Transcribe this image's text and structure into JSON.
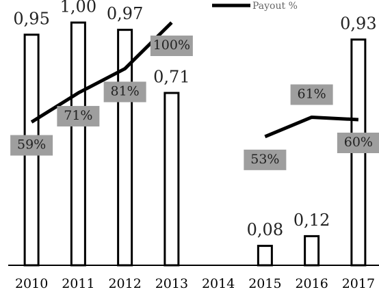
{
  "chart_data": {
    "type": "bar",
    "categories": [
      "2010",
      "2011",
      "2012",
      "2013",
      "2014",
      "2015",
      "2016",
      "2017"
    ],
    "ylim": [
      0,
      1
    ],
    "y2lim": [
      0,
      100
    ],
    "legend": "top",
    "series": [
      {
        "type": "bar",
        "color": "#000000",
        "values": [
          0.95,
          1.0,
          0.97,
          0.71,
          null,
          0.08,
          0.12,
          0.93
        ],
        "value_labels": [
          "0,95",
          "1,00",
          "0,97",
          "0,71",
          null,
          "0,08",
          "0,12",
          "0,93"
        ]
      },
      {
        "type": "line",
        "name": "Payout %",
        "axis": "y2",
        "color": "#000000",
        "values": [
          59,
          71,
          81,
          100,
          null,
          53,
          61,
          60
        ],
        "value_labels": [
          "59%",
          "71%",
          "81%",
          "100%",
          null,
          "53%",
          "61%",
          "60%"
        ]
      }
    ]
  }
}
